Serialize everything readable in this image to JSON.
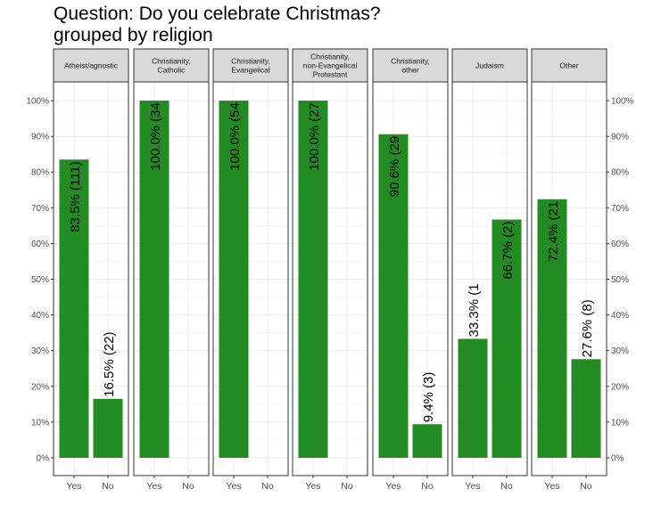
{
  "chart_data": {
    "type": "bar",
    "title": "Question: Do you celebrate Christmas?",
    "subtitle": "grouped by religion",
    "categories": [
      "Yes",
      "No"
    ],
    "ylim": [
      0,
      100
    ],
    "y_ticks": [
      "0%",
      "10%",
      "20%",
      "30%",
      "40%",
      "50%",
      "60%",
      "70%",
      "80%",
      "90%",
      "100%"
    ],
    "grid": true,
    "legend": "none",
    "bar_color": "#228b22",
    "facets": [
      {
        "title": [
          "Atheist/agnostic"
        ],
        "bars": [
          {
            "category": "Yes",
            "value": 83.5,
            "label": "83.5% (111)"
          },
          {
            "category": "No",
            "value": 16.5,
            "label": "16.5% (22)"
          }
        ]
      },
      {
        "title": [
          "Christianity,",
          "Catholic"
        ],
        "bars": [
          {
            "category": "Yes",
            "value": 100.0,
            "label": "100.0% (34"
          }
        ]
      },
      {
        "title": [
          "Christianity,",
          "Evangelical"
        ],
        "bars": [
          {
            "category": "Yes",
            "value": 100.0,
            "label": "100.0% (54"
          }
        ]
      },
      {
        "title": [
          "Christianity,",
          "non-Evangelical",
          "Protestant"
        ],
        "bars": [
          {
            "category": "Yes",
            "value": 100.0,
            "label": "100.0% (27"
          }
        ]
      },
      {
        "title": [
          "Christianity,",
          "other"
        ],
        "bars": [
          {
            "category": "Yes",
            "value": 90.6,
            "label": "90.6% (29"
          },
          {
            "category": "No",
            "value": 9.4,
            "label": "9.4% (3)"
          }
        ]
      },
      {
        "title": [
          "Judaism"
        ],
        "bars": [
          {
            "category": "Yes",
            "value": 33.3,
            "label": "33.3% (1"
          },
          {
            "category": "No",
            "value": 66.7,
            "label": "66.7% (2)"
          }
        ]
      },
      {
        "title": [
          "Other"
        ],
        "bars": [
          {
            "category": "Yes",
            "value": 72.4,
            "label": "72.4% (21"
          },
          {
            "category": "No",
            "value": 27.6,
            "label": "27.6% (8)"
          }
        ]
      }
    ]
  }
}
